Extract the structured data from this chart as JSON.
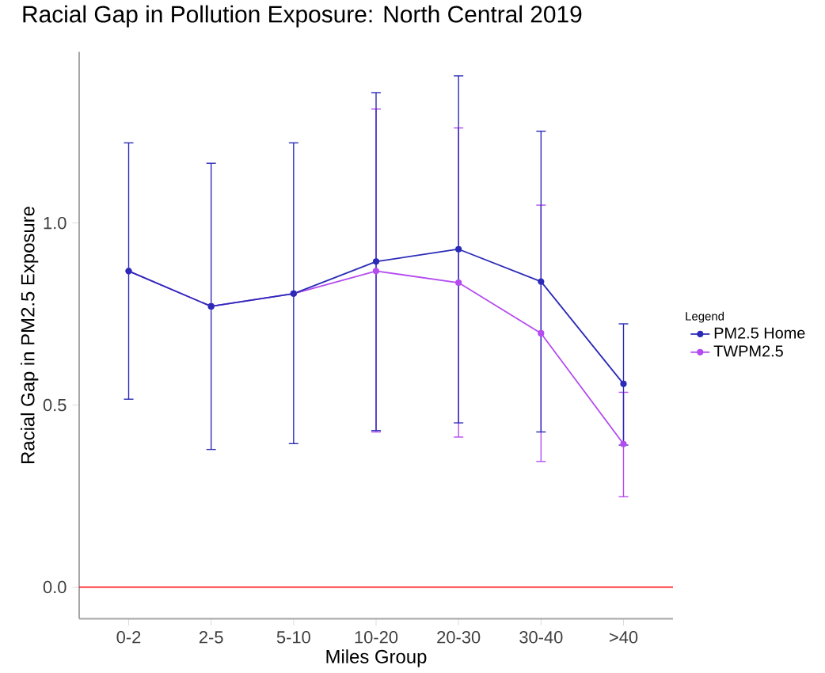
{
  "chart_data": {
    "type": "line",
    "title": "Racial Gap in Pollution Exposure: North Central 2019",
    "xlabel": "Miles Group",
    "ylabel": "Racial Gap in PM2.5 Exposure",
    "legend_title": "Legend",
    "categories": [
      "0-2",
      "2-5",
      "5-10",
      "10-20",
      "20-30",
      "30-40",
      ">40"
    ],
    "series": [
      {
        "name": "PM2.5 Home",
        "color": "#2b2bb8",
        "values": [
          0.868,
          0.771,
          0.806,
          0.894,
          0.928,
          0.839,
          0.558
        ],
        "errors": [
          [
            0.516,
            1.22
          ],
          [
            0.378,
            1.164
          ],
          [
            0.394,
            1.22
          ],
          [
            0.43,
            1.358
          ],
          [
            0.451,
            1.404
          ],
          [
            0.426,
            1.252
          ],
          [
            0.39,
            0.723
          ]
        ]
      },
      {
        "name": "TWPM2.5",
        "color": "#b44cf0",
        "values": [
          0.868,
          0.771,
          0.806,
          0.868,
          0.836,
          0.697,
          0.393
        ],
        "errors": [
          null,
          null,
          null,
          [
            0.426,
            1.313
          ],
          [
            0.412,
            1.261
          ],
          [
            0.345,
            1.049
          ],
          [
            0.248,
            0.535
          ]
        ]
      }
    ],
    "ylim": [
      -0.087,
      1.47
    ],
    "yticks": [
      {
        "value": 0,
        "label": "0.0"
      },
      {
        "value": 0.5,
        "label": "0.5"
      },
      {
        "value": 1,
        "label": "1.0"
      }
    ],
    "ref_lines": [
      {
        "axis": "y",
        "value": 0,
        "color": "#ff0000"
      }
    ],
    "grid": false,
    "legend": "right",
    "marker": "circle",
    "line_style": "solid"
  }
}
